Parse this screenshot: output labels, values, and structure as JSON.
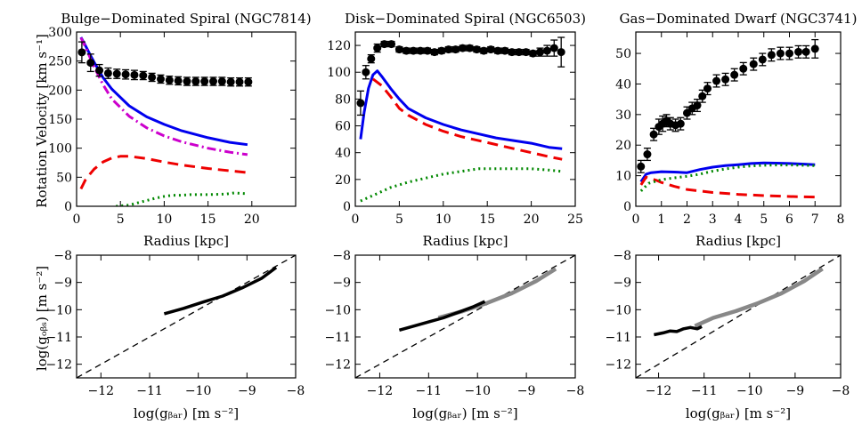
{
  "figure": {
    "ylabel_top": "Rotation Velocity [km s⁻¹]",
    "xlabel_top": "Radius [kpc]",
    "ylabel_bottom": "log(gₒᵦₛ) [m s⁻²]",
    "xlabel_bottom": "log(gᵦₐᵣ) [m s⁻²]"
  },
  "colors": {
    "data": "#000000",
    "total": "#0000ee",
    "disk": "#ee0000",
    "gas": "#008800",
    "bulge": "#cc00cc",
    "rar_data": "#000000",
    "rar_other": "#888888",
    "unity": "#000000"
  },
  "chart_data": [
    {
      "type": "line",
      "title": "Bulge−Dominated Spiral (NGC7814)",
      "xlabel": "Radius [kpc]",
      "ylabel": "Rotation Velocity [km s⁻¹]",
      "xlim": [
        0,
        25
      ],
      "ylim": [
        0,
        300
      ],
      "xticks": [
        0,
        5,
        10,
        15,
        20
      ],
      "yticks": [
        0,
        50,
        100,
        150,
        200,
        250,
        300
      ],
      "points": {
        "name": "observed",
        "x": [
          0.6,
          1.6,
          2.6,
          3.6,
          4.6,
          5.6,
          6.6,
          7.6,
          8.6,
          9.6,
          10.6,
          11.6,
          12.6,
          13.6,
          14.6,
          15.6,
          16.6,
          17.6,
          18.6,
          19.6
        ],
        "y": [
          265,
          247,
          234,
          229,
          228,
          227,
          226,
          225,
          222,
          219,
          217,
          216,
          215,
          215,
          215,
          215,
          215,
          214,
          214,
          214
        ],
        "err": [
          18,
          15,
          10,
          9,
          8,
          8,
          8,
          7,
          7,
          7,
          7,
          7,
          7,
          7,
          7,
          7,
          7,
          7,
          7,
          7
        ]
      },
      "series": [
        {
          "name": "total",
          "style": "solid",
          "x": [
            0.5,
            1,
            1.5,
            2,
            3,
            4,
            6,
            8,
            10,
            12,
            15,
            17.5,
            19.5
          ],
          "y": [
            291,
            277,
            262,
            248,
            222,
            202,
            173,
            154,
            141,
            130,
            118,
            110,
            106
          ]
        },
        {
          "name": "bulge",
          "style": "dashdot",
          "x": [
            0.5,
            1,
            1.5,
            2,
            3,
            4,
            6,
            8,
            10,
            12,
            15,
            17.5,
            19.5
          ],
          "y": [
            290,
            275,
            257,
            240,
            210,
            185,
            155,
            135,
            121,
            111,
            100,
            93,
            89
          ]
        },
        {
          "name": "disk",
          "style": "dashed",
          "x": [
            0.5,
            1,
            1.5,
            2,
            3,
            4,
            5,
            6,
            8,
            10,
            12,
            15,
            17.5,
            19.5
          ],
          "y": [
            30,
            45,
            55,
            64,
            76,
            83,
            86,
            86,
            82,
            76,
            71,
            65,
            61,
            58
          ]
        },
        {
          "name": "gas",
          "style": "dotted",
          "x": [
            4.5,
            6,
            7,
            8,
            9,
            10,
            11,
            12,
            13,
            15,
            17,
            18,
            19,
            19.5
          ],
          "y": [
            0,
            2,
            6,
            10,
            14,
            17,
            19,
            19,
            20,
            20,
            21,
            23,
            22,
            22
          ]
        }
      ]
    },
    {
      "type": "line",
      "title": "Disk−Dominated Spiral (NGC6503)",
      "xlabel": "Radius [kpc]",
      "ylabel": "Rotation Velocity [km s⁻¹]",
      "xlim": [
        0,
        25
      ],
      "ylim": [
        0,
        130
      ],
      "xticks": [
        0,
        5,
        10,
        15,
        20,
        25
      ],
      "yticks": [
        0,
        20,
        40,
        60,
        80,
        100,
        120
      ],
      "points": {
        "name": "observed",
        "x": [
          0.6,
          1.2,
          1.8,
          2.5,
          3.3,
          4.1,
          5,
          5.8,
          6.6,
          7.4,
          8.2,
          9,
          9.8,
          10.6,
          11.4,
          12.2,
          13,
          13.8,
          14.6,
          15.4,
          16.2,
          17,
          17.8,
          18.6,
          19.4,
          20.2,
          21,
          21.8,
          22.6,
          23.4
        ],
        "y": [
          77,
          100,
          110,
          118,
          121,
          121,
          117,
          116,
          116,
          116,
          116,
          115,
          116,
          117,
          117,
          118,
          118,
          117,
          116,
          117,
          116,
          116,
          115,
          115,
          115,
          114,
          115,
          116,
          118,
          115
        ],
        "err": [
          9,
          5,
          3,
          3,
          2,
          2,
          2,
          2,
          2,
          2,
          2,
          2,
          2,
          2,
          2,
          2,
          2,
          2,
          2,
          2,
          2,
          2,
          2,
          2,
          2,
          2,
          3,
          4,
          6,
          11
        ]
      },
      "series": [
        {
          "name": "total",
          "style": "solid",
          "x": [
            0.6,
            1,
            1.5,
            2,
            2.5,
            3,
            4,
            5,
            6,
            8,
            10,
            12,
            14,
            16,
            18,
            20,
            22,
            23.5
          ],
          "y": [
            50,
            70,
            88,
            98,
            101,
            97,
            88,
            80,
            73,
            66,
            61,
            57,
            54,
            51,
            49,
            47,
            44,
            43
          ]
        },
        {
          "name": "disk",
          "style": "dashed",
          "x": [
            2,
            3,
            4,
            5,
            6,
            8,
            10,
            12,
            14,
            16,
            18,
            20,
            22,
            23.5
          ],
          "y": [
            95,
            90,
            82,
            73,
            68,
            61,
            56,
            52,
            49,
            46,
            43,
            40,
            37,
            35
          ]
        },
        {
          "name": "gas",
          "style": "dotted",
          "x": [
            0.6,
            2,
            4,
            6,
            8,
            10,
            12,
            14,
            16,
            18,
            20,
            22,
            23.5
          ],
          "y": [
            4,
            8,
            14,
            18,
            21,
            24,
            26,
            28,
            28,
            28,
            28,
            27,
            26
          ]
        }
      ]
    },
    {
      "type": "line",
      "title": "Gas−Dominated Dwarf (NGC3741)",
      "xlabel": "Radius [kpc]",
      "ylabel": "Rotation Velocity [km s⁻¹]",
      "xlim": [
        0,
        8
      ],
      "ylim": [
        0,
        57
      ],
      "xticks": [
        0,
        1,
        2,
        3,
        4,
        5,
        6,
        7,
        8
      ],
      "yticks": [
        0,
        10,
        20,
        30,
        40,
        50
      ],
      "points": {
        "name": "observed",
        "x": [
          0.2,
          0.45,
          0.7,
          0.9,
          1.05,
          1.2,
          1.35,
          1.55,
          1.75,
          2.0,
          2.2,
          2.4,
          2.6,
          2.8,
          3.15,
          3.5,
          3.85,
          4.2,
          4.6,
          4.95,
          5.3,
          5.65,
          6.0,
          6.35,
          6.65,
          7.0
        ],
        "y": [
          13,
          17,
          23.5,
          26,
          27,
          28,
          27,
          26.5,
          27,
          30.5,
          32,
          33,
          36,
          38.5,
          41,
          41.5,
          43,
          45,
          46.5,
          48,
          49.5,
          50,
          50,
          50.5,
          50.5,
          51.5
        ],
        "err": [
          2,
          2,
          2,
          2.5,
          2.5,
          2,
          2,
          2,
          2,
          2,
          2,
          2,
          2,
          2,
          2,
          2,
          2,
          2,
          2,
          2,
          2,
          2,
          2,
          2,
          2,
          3
        ]
      },
      "series": [
        {
          "name": "total",
          "style": "solid",
          "x": [
            0.2,
            0.4,
            0.6,
            1,
            1.5,
            2,
            2.5,
            3,
            3.5,
            4,
            4.5,
            5,
            5.5,
            6,
            6.5,
            7
          ],
          "y": [
            8,
            10.5,
            11,
            11.3,
            11.2,
            11,
            12,
            12.8,
            13.3,
            13.6,
            14,
            14.2,
            14.1,
            14,
            13.8,
            13.6
          ]
        },
        {
          "name": "disk",
          "style": "dashed",
          "x": [
            0.2,
            0.4,
            0.6,
            0.8,
            1,
            1.5,
            2,
            3,
            4,
            5,
            6,
            7
          ],
          "y": [
            7,
            9.5,
            9,
            8.5,
            7.8,
            6.5,
            5.5,
            4.5,
            3.9,
            3.5,
            3.2,
            3
          ]
        },
        {
          "name": "gas",
          "style": "dotted",
          "x": [
            0.2,
            0.5,
            1,
            1.5,
            2,
            2.5,
            3,
            3.5,
            4,
            4.5,
            5,
            5.5,
            6,
            6.5,
            7
          ],
          "y": [
            5,
            7.5,
            8.7,
            9.3,
            9.8,
            10.5,
            11.5,
            12.2,
            12.8,
            13.2,
            13.4,
            13.5,
            13.5,
            13.4,
            13.3
          ]
        }
      ]
    },
    {
      "type": "line",
      "title": "",
      "xlabel": "log(gᵦₐᵣ) [m s⁻²]",
      "ylabel": "log(gₒᵦₛ) [m s⁻²]",
      "xlim": [
        -12.5,
        -8
      ],
      "ylim": [
        -12.5,
        -8
      ],
      "xticks": [
        -12,
        -10,
        -8
      ],
      "xticks_minor": [
        -11,
        -9
      ],
      "yticks": [
        -12,
        -11,
        -10,
        -9,
        -8
      ],
      "unity_line": {
        "name": "one-to-one",
        "style": "dashed",
        "x": [
          -12.5,
          -8
        ],
        "y": [
          -12.5,
          -8
        ]
      },
      "series": [
        {
          "name": "NGC7814",
          "color": "rar_data",
          "x": [
            -10.7,
            -10.3,
            -9.9,
            -9.5,
            -9.1,
            -8.7,
            -8.4
          ],
          "y": [
            -10.15,
            -9.95,
            -9.72,
            -9.5,
            -9.2,
            -8.85,
            -8.45
          ]
        }
      ]
    },
    {
      "type": "line",
      "title": "",
      "xlabel": "log(gᵦₐᵣ) [m s⁻²]",
      "ylabel": "log(gₒᵦₛ) [m s⁻²]",
      "xlim": [
        -12.5,
        -8
      ],
      "ylim": [
        -12.5,
        -8
      ],
      "xticks": [
        -12,
        -10,
        -8
      ],
      "xticks_minor": [
        -11,
        -9
      ],
      "yticks": [
        -12,
        -11,
        -10,
        -9,
        -8
      ],
      "unity_line": {
        "name": "one-to-one",
        "style": "dashed",
        "x": [
          -12.5,
          -8
        ],
        "y": [
          -12.5,
          -8
        ]
      },
      "series": [
        {
          "name": "other galaxies",
          "color": "rar_other",
          "x": [
            -10.8,
            -10.3,
            -9.8,
            -9.3,
            -8.8,
            -8.4
          ],
          "y": [
            -10.3,
            -10.05,
            -9.75,
            -9.4,
            -8.95,
            -8.5
          ]
        },
        {
          "name": "NGC6503",
          "color": "rar_data",
          "x": [
            -11.6,
            -11.3,
            -11.0,
            -10.7,
            -10.4,
            -10.1,
            -9.85
          ],
          "y": [
            -10.75,
            -10.6,
            -10.45,
            -10.3,
            -10.1,
            -9.9,
            -9.7
          ]
        }
      ]
    },
    {
      "type": "line",
      "title": "",
      "xlabel": "log(gᵦₐᵣ) [m s⁻²]",
      "ylabel": "log(gₒᵦₛ) [m s⁻²]",
      "xlim": [
        -12.5,
        -8
      ],
      "ylim": [
        -12.5,
        -8
      ],
      "xticks": [
        -12,
        -10,
        -8
      ],
      "xticks_minor": [
        -11,
        -9
      ],
      "yticks": [
        -12,
        -11,
        -10,
        -9,
        -8
      ],
      "unity_line": {
        "name": "one-to-one",
        "style": "dashed",
        "x": [
          -12.5,
          -8
        ],
        "y": [
          -12.5,
          -8
        ]
      },
      "series": [
        {
          "name": "other galaxies",
          "color": "rar_other",
          "x": [
            -11.2,
            -10.8,
            -10.3,
            -9.8,
            -9.3,
            -8.8,
            -8.4
          ],
          "y": [
            -10.6,
            -10.3,
            -10.05,
            -9.75,
            -9.4,
            -8.95,
            -8.5
          ]
        },
        {
          "name": "NGC3741",
          "color": "rar_data",
          "x": [
            -12.1,
            -11.9,
            -11.75,
            -11.6,
            -11.45,
            -11.3,
            -11.15,
            -11.05
          ],
          "y": [
            -10.92,
            -10.85,
            -10.78,
            -10.8,
            -10.7,
            -10.65,
            -10.7,
            -10.62
          ]
        }
      ]
    }
  ]
}
